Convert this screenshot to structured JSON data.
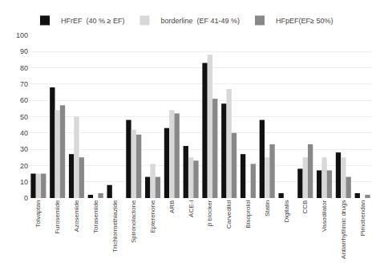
{
  "chart_data": {
    "type": "bar",
    "categories": [
      "Tolvaptan",
      "Furosemide",
      "Azosemide",
      "Torasemide",
      "Trichlormethiazide",
      "Spironolactone",
      "Eplerenone",
      "ARB",
      "ACE-I",
      "β blocker",
      "Carvedilol",
      "Bisoprolol",
      "Statin",
      "Digitalis",
      "CCB",
      "Vasodilator",
      "Antiarrhythmic drugs",
      "Pimobendan"
    ],
    "series": [
      {
        "name": "HFrEF  (40 % ≥ EF)",
        "color": "#111111",
        "values": [
          15,
          68,
          27,
          2,
          8,
          48,
          13,
          43,
          32,
          83,
          58,
          27,
          48,
          3,
          18,
          17,
          28,
          3
        ]
      },
      {
        "name": "borderline  (EF 41-49 %)",
        "color": "#d8d8d8",
        "values": [
          15,
          54,
          50,
          0,
          0,
          42,
          21,
          54,
          25,
          88,
          67,
          0,
          25,
          0,
          25,
          25,
          25,
          0
        ]
      },
      {
        "name": "HFpEF(EF≥ 50%)",
        "color": "#888888",
        "values": [
          15,
          57,
          25,
          3,
          0,
          39,
          13,
          52,
          23,
          61,
          40,
          21,
          33,
          0,
          33,
          17,
          13,
          2
        ]
      }
    ],
    "ylim": [
      0,
      100
    ],
    "yticks": [
      0,
      10,
      20,
      30,
      40,
      50,
      60,
      70,
      80,
      90,
      100
    ],
    "grid": true,
    "legend": "upper left"
  }
}
